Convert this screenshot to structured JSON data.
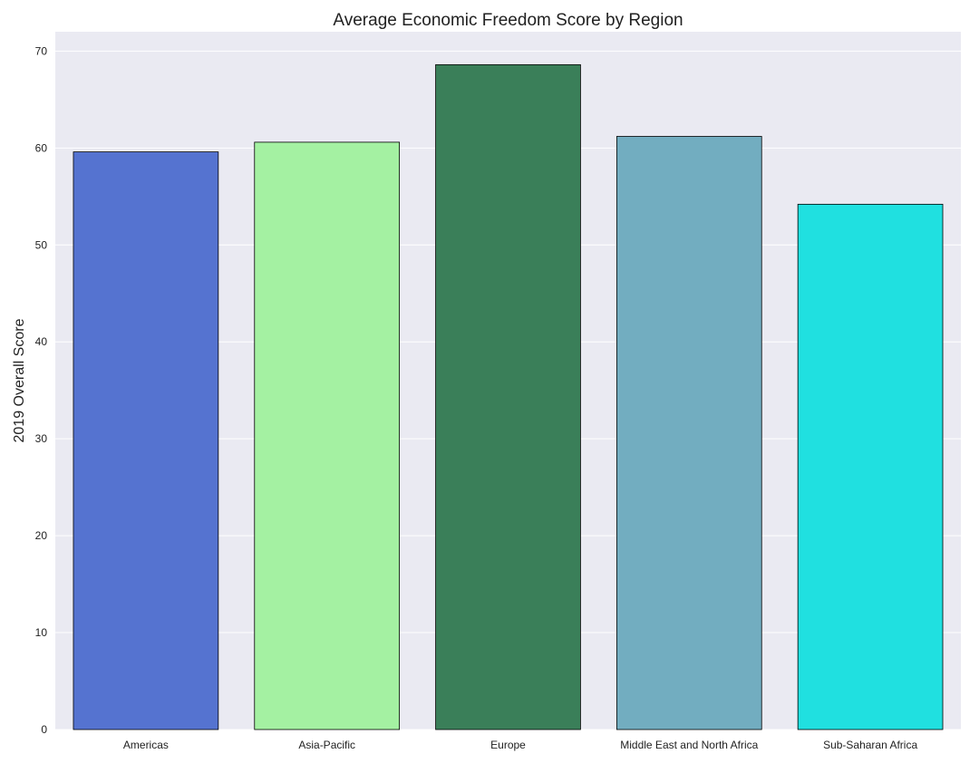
{
  "chart_data": {
    "type": "bar",
    "title": "Average Economic Freedom Score by Region",
    "xlabel": "",
    "ylabel": "2019 Overall Score",
    "categories": [
      "Americas",
      "Asia-Pacific",
      "Europe",
      "Middle East and North Africa",
      "Sub-Saharan Africa"
    ],
    "values": [
      59.6,
      60.6,
      68.6,
      61.2,
      54.2
    ],
    "colors": [
      "#5573d0",
      "#a4f1a2",
      "#3a7f59",
      "#72adc0",
      "#20e0e0"
    ],
    "ylim": [
      0,
      72
    ],
    "yticks": [
      0,
      10,
      20,
      30,
      40,
      50,
      60,
      70
    ],
    "grid": true,
    "grid_axis": "y",
    "legend": "none",
    "background": "#eaeaf2",
    "edge_color": "#000000"
  }
}
